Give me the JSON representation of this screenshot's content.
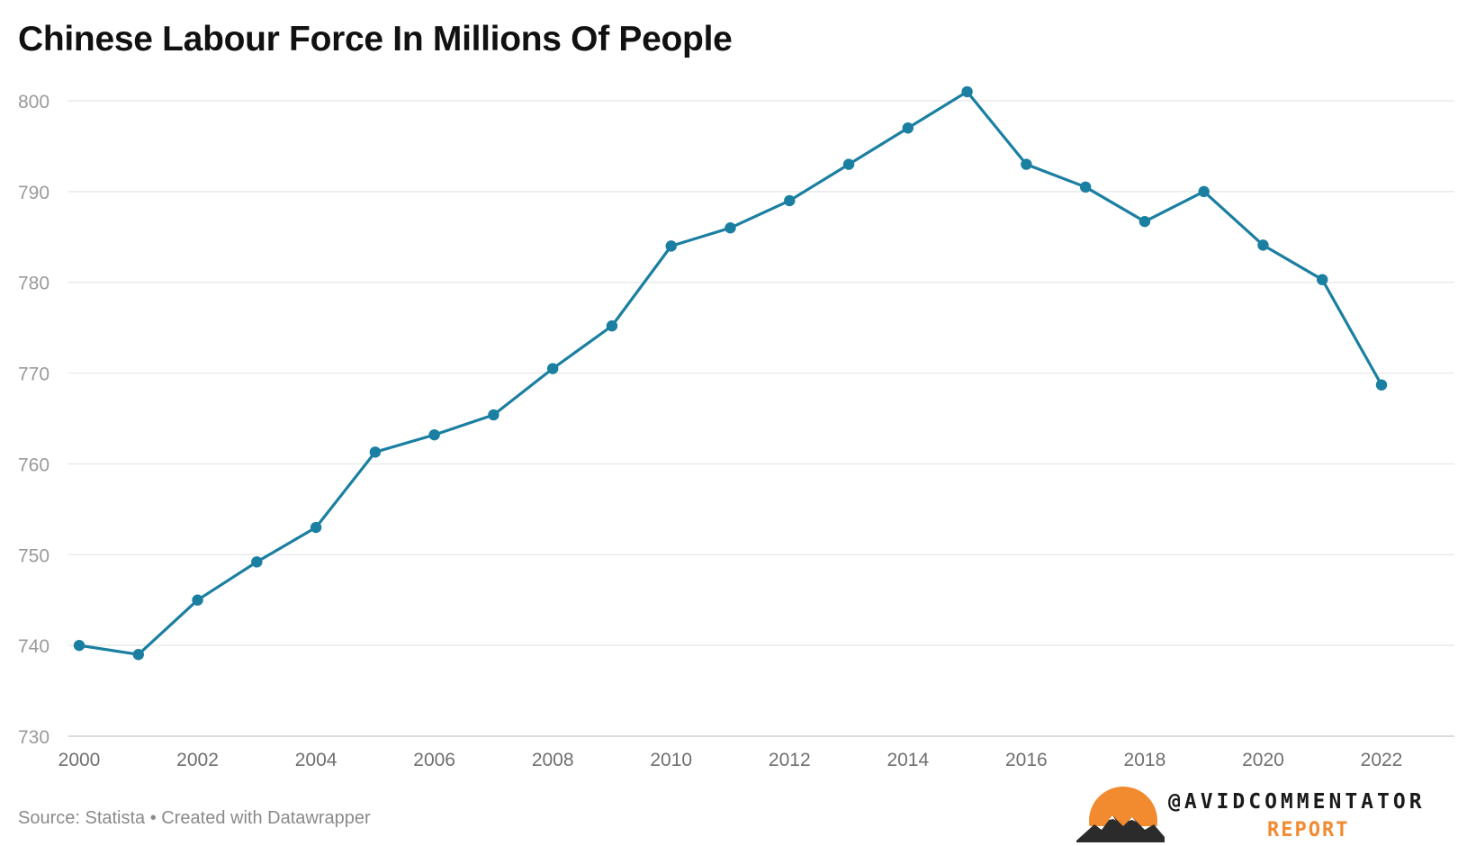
{
  "chart_data": {
    "type": "line",
    "title": "Chinese Labour Force In Millions Of People",
    "source_note": "Source: Statista • Created with Datawrapper",
    "x": [
      2000,
      2001,
      2002,
      2003,
      2004,
      2005,
      2006,
      2007,
      2008,
      2009,
      2010,
      2011,
      2012,
      2013,
      2014,
      2015,
      2016,
      2017,
      2018,
      2019,
      2020,
      2021,
      2022
    ],
    "series": [
      {
        "name": "",
        "color": "#1a7fa1",
        "values": [
          740.0,
          739.0,
          745.0,
          749.2,
          753.0,
          761.3,
          763.2,
          765.4,
          770.5,
          775.2,
          784.0,
          786.0,
          789.0,
          793.0,
          797.0,
          801.0,
          793.0,
          790.5,
          786.7,
          790.0,
          784.1,
          780.3,
          768.7
        ]
      }
    ],
    "x_ticks": [
      "2000",
      "2002",
      "2004",
      "2006",
      "2008",
      "2010",
      "2012",
      "2014",
      "2016",
      "2018",
      "2020",
      "2022"
    ],
    "y_ticks": [
      "730",
      "740",
      "750",
      "760",
      "770",
      "780",
      "790",
      "800"
    ],
    "xlim": [
      2000,
      2022
    ],
    "ylim": [
      730,
      800
    ],
    "grid": "horizontal",
    "legend": "none"
  },
  "branding": {
    "handle": "@AVIDCOMMENTATOR",
    "subtitle": "REPORT",
    "accent_color": "#f28a30"
  }
}
